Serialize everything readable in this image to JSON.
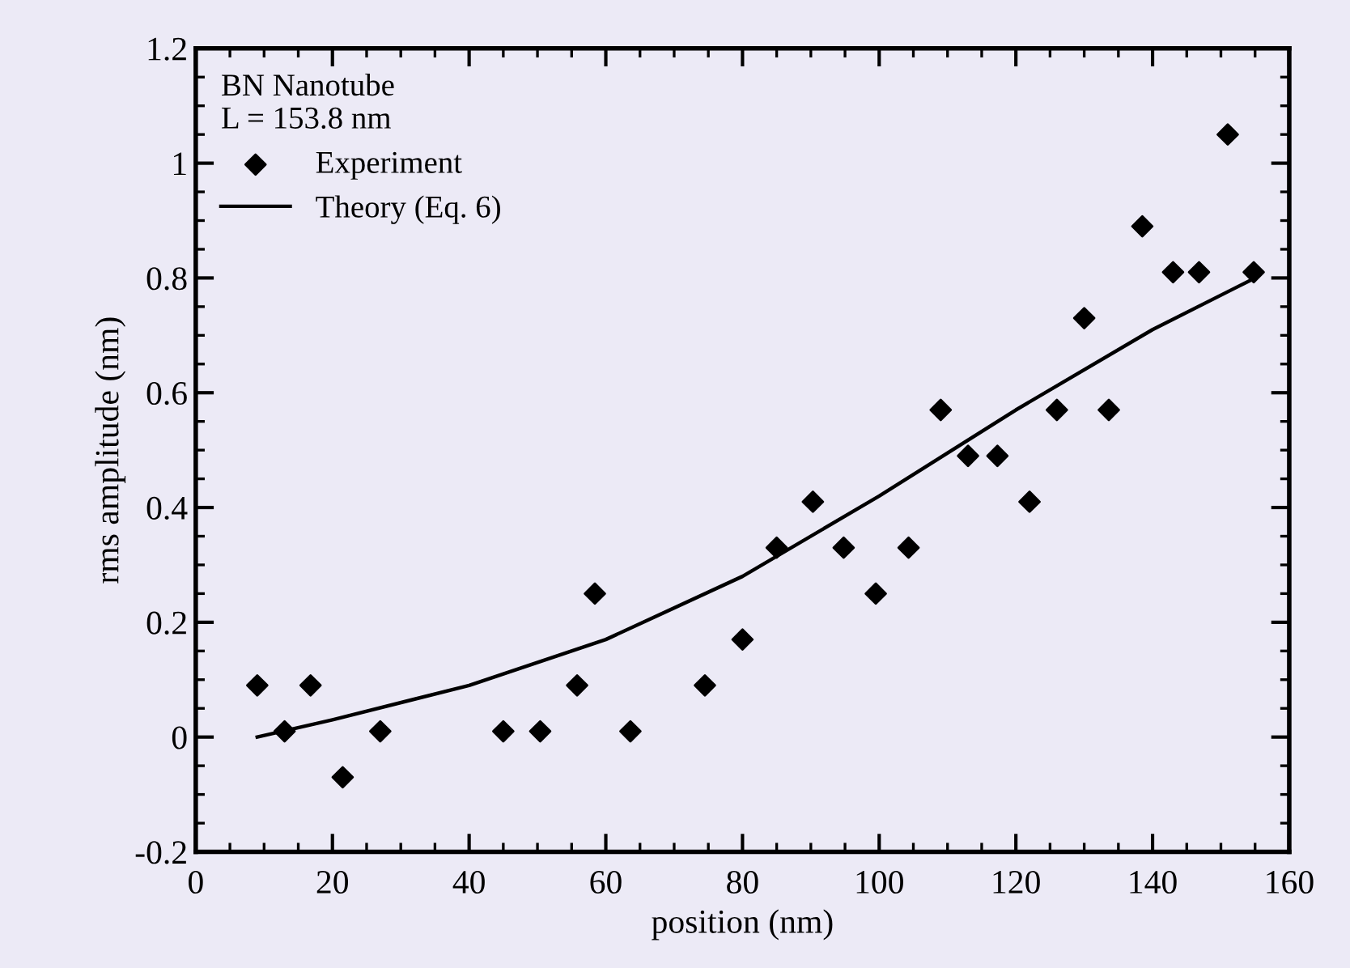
{
  "chart_data": {
    "type": "scatter",
    "xlabel": "position (nm)",
    "ylabel": "rms amplitude (nm)",
    "legend_title": "BN Nanotube\nL = 153.8 nm",
    "xlim": [
      0,
      160
    ],
    "xticks": [
      0,
      20,
      40,
      60,
      80,
      100,
      120,
      140,
      160
    ],
    "ylim": [
      -0.2,
      1.2
    ],
    "yticks": [
      {
        "value": -0.2,
        "label": "-0.2"
      },
      0,
      0.2,
      0.4,
      0.6,
      0.8,
      1,
      1.2
    ],
    "grid": false,
    "legend": "top left",
    "series": [
      {
        "name": "Experiment",
        "marker": "diamond",
        "color": "#000000",
        "x": [
          9,
          13,
          16.8,
          21.5,
          27,
          45,
          50.4,
          55.8,
          58.4,
          63.6,
          74.5,
          80,
          85,
          90.3,
          94.8,
          99.5,
          104.3,
          109,
          113,
          117.3,
          122,
          126,
          130,
          133.6,
          138.5,
          143,
          146.8,
          151,
          154.8
        ],
        "values": [
          0.09,
          0.01,
          0.09,
          -0.07,
          0.01,
          0.01,
          0.01,
          0.09,
          0.25,
          0.01,
          0.09,
          0.17,
          0.33,
          0.41,
          0.33,
          0.25,
          0.33,
          0.57,
          0.49,
          0.49,
          0.41,
          0.57,
          0.73,
          0.57,
          0.89,
          0.81,
          0.81,
          1.05,
          0.81
        ]
      },
      {
        "name": "Theory (Eq. 6)",
        "type": "line",
        "line_style": "solid",
        "color": "#000000",
        "x": [
          9,
          20,
          40,
          60,
          80,
          100,
          120,
          140,
          155
        ],
        "values": [
          0.0,
          0.03,
          0.09,
          0.17,
          0.28,
          0.42,
          0.57,
          0.71,
          0.8
        ]
      }
    ]
  }
}
